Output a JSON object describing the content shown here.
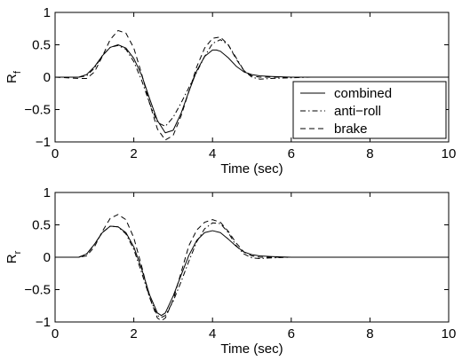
{
  "chart_data": [
    {
      "type": "line",
      "xlabel": "Time (sec)",
      "ylabel": "R",
      "ylabel_sub": "f",
      "xlim": [
        0,
        10
      ],
      "ylim": [
        -1,
        1
      ],
      "xticks": [
        0,
        2,
        4,
        6,
        8,
        10
      ],
      "yticks": [
        -1,
        -0.5,
        0,
        0.5,
        1
      ],
      "xtick_labels": [
        "0",
        "2",
        "4",
        "6",
        "8",
        "10"
      ],
      "ytick_labels": [
        "−1",
        "−0.5",
        "0",
        "0.5",
        "1"
      ],
      "grid": false,
      "legend": {
        "placement": "bottom-right",
        "entries": [
          "combined",
          "anti−roll",
          "brake"
        ]
      },
      "series": [
        {
          "name": "combined",
          "style": "solid",
          "x": [
            0,
            0.6,
            0.8,
            1.0,
            1.2,
            1.4,
            1.6,
            1.8,
            2.0,
            2.2,
            2.4,
            2.6,
            2.8,
            3.0,
            3.2,
            3.4,
            3.6,
            3.8,
            4.0,
            4.1,
            4.2,
            4.4,
            4.6,
            4.8,
            5.0,
            5.2,
            5.5,
            6.0,
            6.5,
            10
          ],
          "y": [
            0,
            0,
            0.04,
            0.16,
            0.33,
            0.46,
            0.5,
            0.45,
            0.29,
            0.03,
            -0.33,
            -0.67,
            -0.86,
            -0.82,
            -0.56,
            -0.22,
            0.1,
            0.32,
            0.42,
            0.42,
            0.4,
            0.3,
            0.17,
            0.08,
            0.04,
            0.02,
            0.01,
            0,
            0,
            0
          ]
        },
        {
          "name": "anti−roll",
          "style": "dashdot",
          "x": [
            0,
            0.6,
            0.8,
            1.0,
            1.2,
            1.4,
            1.6,
            1.8,
            2.0,
            2.2,
            2.4,
            2.6,
            2.8,
            3.0,
            3.2,
            3.4,
            3.6,
            3.8,
            4.0,
            4.2,
            4.4,
            4.6,
            4.8,
            5.0,
            5.2,
            5.5,
            6.0,
            6.5,
            10
          ],
          "y": [
            0,
            0,
            0.02,
            0.14,
            0.33,
            0.46,
            0.49,
            0.43,
            0.24,
            -0.05,
            -0.4,
            -0.7,
            -0.76,
            -0.62,
            -0.4,
            -0.16,
            0.08,
            0.32,
            0.52,
            0.58,
            0.5,
            0.3,
            0.1,
            0.0,
            -0.03,
            -0.02,
            -0.01,
            0,
            0
          ]
        },
        {
          "name": "brake",
          "style": "dashed",
          "x": [
            0,
            0.6,
            0.8,
            1.0,
            1.2,
            1.4,
            1.6,
            1.8,
            2.0,
            2.2,
            2.4,
            2.6,
            2.8,
            3.0,
            3.2,
            3.4,
            3.6,
            3.8,
            4.0,
            4.2,
            4.4,
            4.6,
            4.8,
            5.0,
            5.2,
            5.5,
            6.0,
            6.5,
            10
          ],
          "y": [
            0,
            -0.02,
            -0.02,
            0.08,
            0.32,
            0.58,
            0.72,
            0.68,
            0.45,
            0.05,
            -0.4,
            -0.8,
            -0.97,
            -0.9,
            -0.6,
            -0.22,
            0.16,
            0.45,
            0.6,
            0.62,
            0.5,
            0.28,
            0.1,
            0.02,
            0.0,
            0.0,
            0,
            0,
            0
          ]
        }
      ]
    },
    {
      "type": "line",
      "xlabel": "Time (sec)",
      "ylabel": "R",
      "ylabel_sub": "r",
      "xlim": [
        0,
        10
      ],
      "ylim": [
        -1,
        1
      ],
      "xticks": [
        0,
        2,
        4,
        6,
        8,
        10
      ],
      "yticks": [
        -1,
        -0.5,
        0,
        0.5,
        1
      ],
      "xtick_labels": [
        "0",
        "2",
        "4",
        "6",
        "8",
        "10"
      ],
      "ytick_labels": [
        "−1",
        "−0.5",
        "0",
        "0.5",
        "1"
      ],
      "grid": false,
      "series": [
        {
          "name": "combined",
          "style": "solid",
          "x": [
            0,
            0.6,
            0.8,
            1.0,
            1.2,
            1.4,
            1.6,
            1.8,
            2.0,
            2.2,
            2.4,
            2.6,
            2.7,
            2.8,
            3.0,
            3.2,
            3.4,
            3.6,
            3.8,
            4.0,
            4.2,
            4.4,
            4.6,
            4.8,
            5.0,
            5.2,
            5.5,
            6.0,
            6.5,
            10
          ],
          "y": [
            0,
            0,
            0.05,
            0.2,
            0.38,
            0.48,
            0.47,
            0.38,
            0.16,
            -0.18,
            -0.58,
            -0.86,
            -0.9,
            -0.86,
            -0.6,
            -0.28,
            0.03,
            0.26,
            0.38,
            0.41,
            0.38,
            0.28,
            0.17,
            0.08,
            0.04,
            0.02,
            0.01,
            0,
            0,
            0
          ]
        },
        {
          "name": "anti−roll",
          "style": "dashdot",
          "x": [
            0,
            0.6,
            0.8,
            1.0,
            1.2,
            1.4,
            1.6,
            1.8,
            2.0,
            2.2,
            2.4,
            2.6,
            2.7,
            2.8,
            3.0,
            3.2,
            3.4,
            3.6,
            3.8,
            4.0,
            4.2,
            4.4,
            4.6,
            4.8,
            5.0,
            5.2,
            5.5,
            6.0,
            6.5,
            10
          ],
          "y": [
            0,
            0,
            0.04,
            0.2,
            0.38,
            0.48,
            0.47,
            0.36,
            0.12,
            -0.24,
            -0.62,
            -0.9,
            -0.93,
            -0.9,
            -0.68,
            -0.38,
            -0.06,
            0.24,
            0.44,
            0.53,
            0.52,
            0.38,
            0.18,
            0.05,
            -0.01,
            -0.02,
            -0.01,
            0,
            0,
            0
          ]
        },
        {
          "name": "brake",
          "style": "dashed",
          "x": [
            0,
            0.6,
            0.8,
            1.0,
            1.2,
            1.4,
            1.6,
            1.8,
            2.0,
            2.2,
            2.4,
            2.6,
            2.7,
            2.8,
            3.0,
            3.2,
            3.4,
            3.6,
            3.8,
            4.0,
            4.2,
            4.4,
            4.6,
            4.8,
            5.0,
            5.2,
            5.5,
            6.0,
            6.5,
            10
          ],
          "y": [
            0,
            0,
            0.02,
            0.16,
            0.4,
            0.6,
            0.66,
            0.58,
            0.3,
            -0.14,
            -0.62,
            -0.94,
            -0.98,
            -0.94,
            -0.66,
            -0.24,
            0.18,
            0.42,
            0.54,
            0.58,
            0.54,
            0.4,
            0.22,
            0.08,
            0.02,
            0.0,
            0.0,
            0,
            0,
            0
          ]
        }
      ]
    }
  ]
}
